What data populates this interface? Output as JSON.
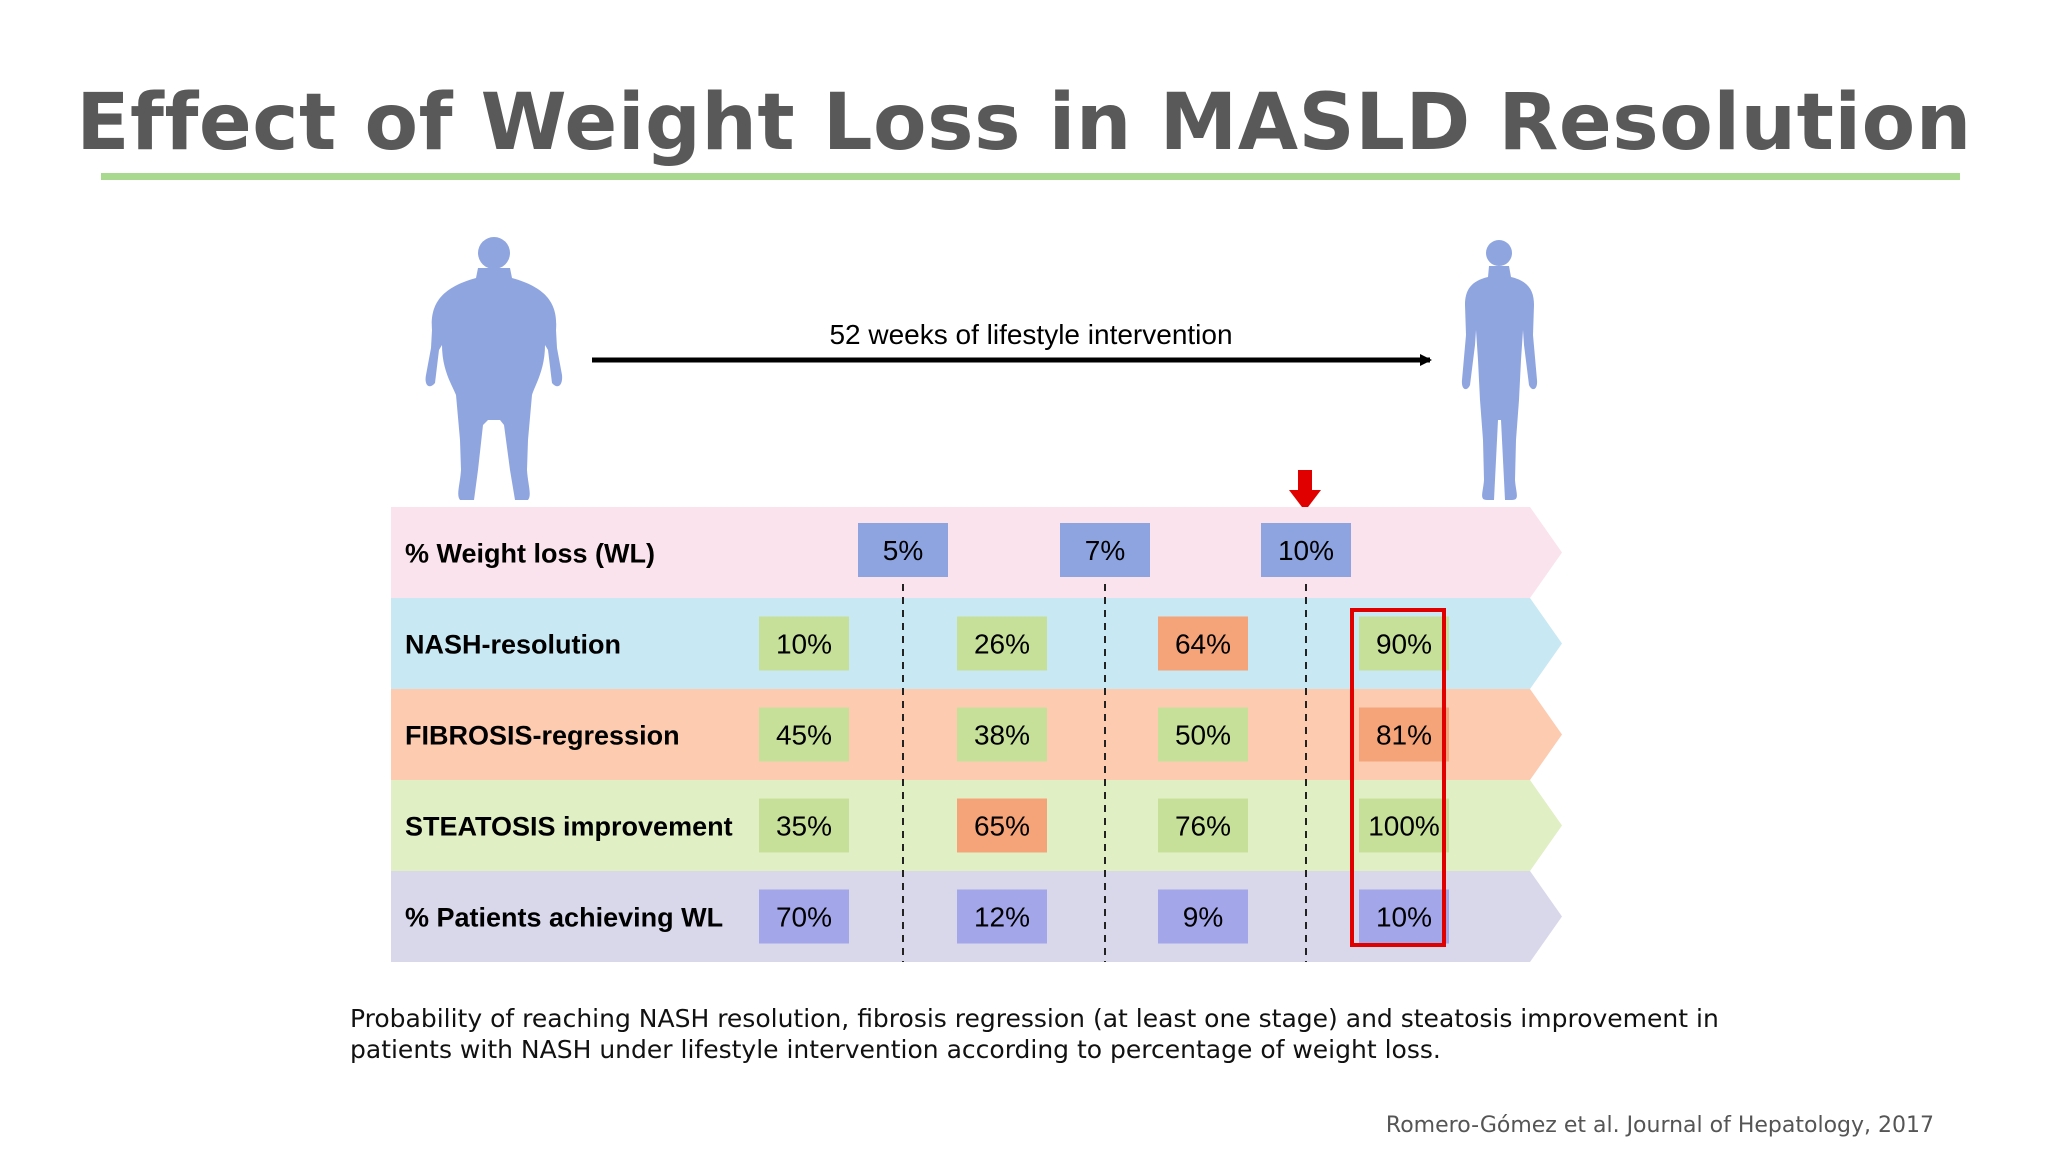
{
  "title": "Effect of  Weight Loss in MASLD Resolution",
  "arrow_label": "52 weeks of lifestyle intervention",
  "colors": {
    "title": "#595959",
    "title_rule": "#a9d98f",
    "silhouette": "#8fa5e0",
    "highlight": "#e00000",
    "cell_green": "#c6e09a",
    "cell_orange": "#f5a47a",
    "cell_blue": "#8ea4e0",
    "cell_purple": "#a4a6ea"
  },
  "rows": [
    {
      "label": "% Weight loss (WL)",
      "band_color": "#fae3ec",
      "values": [
        "5%",
        "7%",
        "10%"
      ]
    },
    {
      "label": "NASH-resolution",
      "band_color": "#c8e8f3",
      "values": [
        "10%",
        "26%",
        "64%",
        "90%"
      ],
      "cell_colors": [
        "green",
        "green",
        "orange",
        "green"
      ]
    },
    {
      "label": "FIBROSIS-regression",
      "band_color": "#fccbb0",
      "values": [
        "45%",
        "38%",
        "50%",
        "81%"
      ],
      "cell_colors": [
        "green",
        "green",
        "green",
        "orange"
      ]
    },
    {
      "label": "STEATOSIS improvement",
      "band_color": "#e1efc4",
      "values": [
        "35%",
        "65%",
        "76%",
        "100%"
      ],
      "cell_colors": [
        "green",
        "orange",
        "green",
        "green"
      ]
    },
    {
      "label": "% Patients achieving WL",
      "band_color": "#d9d7ea",
      "values": [
        "70%",
        "12%",
        "9%",
        "10%"
      ],
      "cell_colors": [
        "purple",
        "purple",
        "purple",
        "purple"
      ]
    }
  ],
  "highlighted_column": 4,
  "marked_threshold": "10%",
  "caption": "Probability of reaching NASH resolution, fibrosis regression (at least one stage) and steatosis improvement in patients with NASH under lifestyle intervention according to percentage of weight loss.",
  "citation": "Romero-Gómez et al. Journal of Hepatology, 2017"
}
